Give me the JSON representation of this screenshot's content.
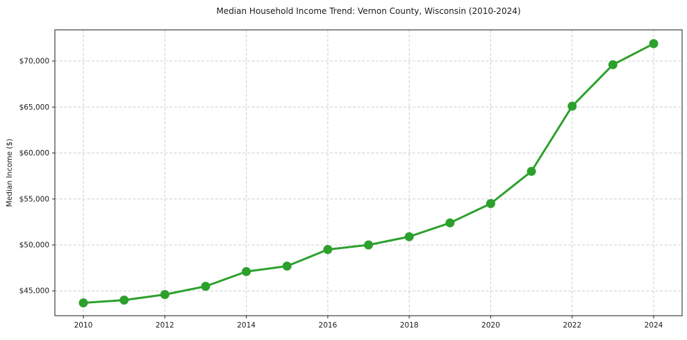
{
  "chart_data": {
    "type": "line",
    "title": "Median Household Income Trend: Vernon County, Wisconsin (2010-2024)",
    "xlabel": "",
    "ylabel": "Median Income ($)",
    "x": [
      2010,
      2011,
      2012,
      2013,
      2014,
      2015,
      2016,
      2017,
      2018,
      2019,
      2020,
      2021,
      2022,
      2023,
      2024
    ],
    "values": [
      43700,
      44000,
      44600,
      45500,
      47100,
      47700,
      49500,
      50000,
      50900,
      52400,
      54500,
      58000,
      65100,
      69600,
      71900
    ],
    "x_ticks": [
      2010,
      2012,
      2014,
      2016,
      2018,
      2020,
      2022,
      2024
    ],
    "x_tick_labels": [
      "2010",
      "2012",
      "2014",
      "2016",
      "2018",
      "2020",
      "2022",
      "2024"
    ],
    "y_ticks": [
      45000,
      50000,
      55000,
      60000,
      65000,
      70000
    ],
    "y_tick_labels": [
      "$45,000",
      "$50,000",
      "$55,000",
      "$60,000",
      "$65,000",
      "$70,000"
    ],
    "xlim": [
      2009.3,
      2024.7
    ],
    "ylim": [
      42300,
      73400
    ],
    "grid": true,
    "legend": "none",
    "line_color": "#2ca02c",
    "grid_color": "#cccccc",
    "marker": "o"
  }
}
